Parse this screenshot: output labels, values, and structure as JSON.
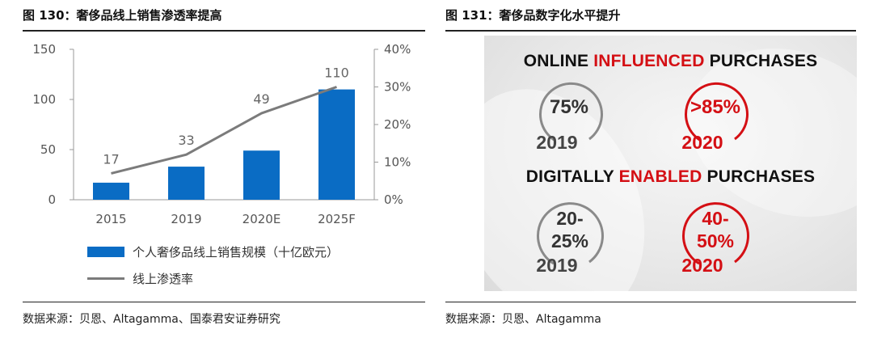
{
  "left": {
    "title": "图 130：奢侈品线上销售渗透率提高",
    "source": "数据来源：贝恩、Altagamma、国泰君安证券研究",
    "legend": {
      "bar_label": "个人奢侈品线上销售规模（十亿欧元）",
      "line_label": "线上渗透率"
    }
  },
  "right": {
    "title": "图 131：奢侈品数字化水平提升",
    "source": "数据来源：贝恩、Altagamma",
    "row1": {
      "heading_pre": "ONLINE ",
      "heading_red": "INFLUENCED",
      "heading_post": " PURCHASES",
      "left_value": "75%",
      "left_year": "2019",
      "right_value": ">85%",
      "right_year": "2020"
    },
    "row2": {
      "heading_pre": "DIGITALLY ",
      "heading_red": "ENABLED",
      "heading_post": " PURCHASES",
      "left_value_line1": "20-",
      "left_value_line2": "25%",
      "left_year": "2019",
      "right_value_line1": "40-",
      "right_value_line2": "50%",
      "right_year": "2020"
    },
    "colors": {
      "accent_red": "#d40f14",
      "ring_gray": "#8a8a8a",
      "text_dark": "#333333"
    }
  },
  "chart_data": {
    "type": "bar",
    "categories": [
      "2015",
      "2019",
      "2020E",
      "2025F"
    ],
    "series": [
      {
        "name": "个人奢侈品线上销售规模（十亿欧元）",
        "kind": "bar",
        "axis": "left",
        "values": [
          17,
          33,
          49,
          110
        ],
        "color": "#0a6cc4"
      },
      {
        "name": "线上渗透率",
        "kind": "line",
        "axis": "right",
        "values": [
          7,
          12,
          23,
          30
        ],
        "color": "#7b7b7b"
      }
    ],
    "data_labels": [
      "17",
      "33",
      "49",
      "110"
    ],
    "ylim": [
      0,
      150
    ],
    "y_ticks": [
      0,
      50,
      100,
      150
    ],
    "y_tick_labels": [
      "0",
      "50",
      "100",
      "150"
    ],
    "y2lim": [
      0,
      40
    ],
    "y2_ticks": [
      0,
      10,
      20,
      30,
      40
    ],
    "y2_tick_labels": [
      "0%",
      "10%",
      "20%",
      "30%",
      "40%"
    ],
    "legend_position": "bottom-left",
    "grid": false
  }
}
